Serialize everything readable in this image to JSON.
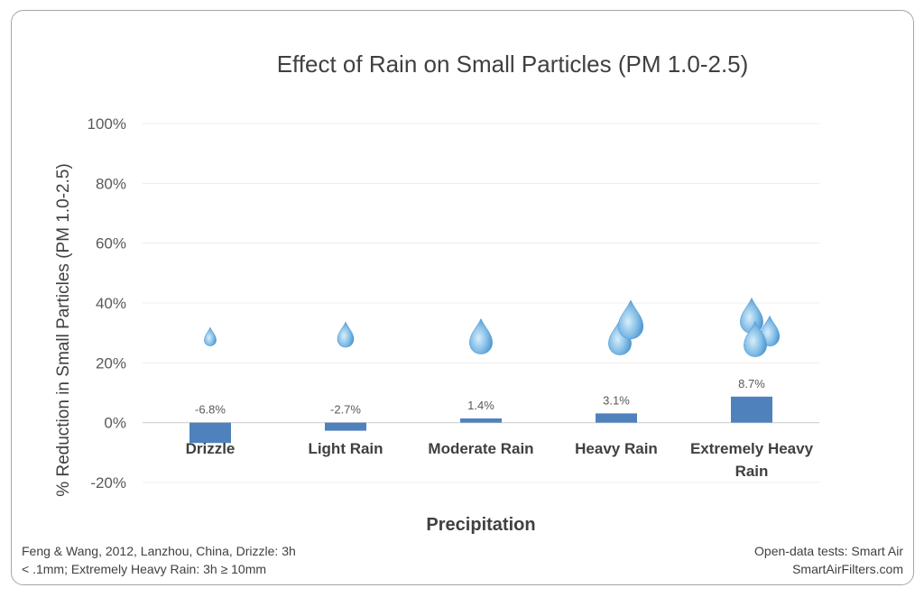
{
  "chart_data": {
    "type": "bar",
    "title": "Effect of Rain on Small Particles (PM 1.0-2.5)",
    "xlabel": "Precipitation",
    "ylabel": "% Reduction in Small Particles (PM 1.0-2.5)",
    "categories": [
      "Drizzle",
      "Light Rain",
      "Moderate Rain",
      "Heavy Rain",
      "Extremely Heavy Rain"
    ],
    "values": [
      -6.8,
      -2.7,
      1.4,
      3.1,
      8.7
    ],
    "data_labels": [
      "-6.8%",
      "-2.7%",
      "1.4%",
      "3.1%",
      "8.7%"
    ],
    "ylim": [
      -20,
      100
    ],
    "yticks": [
      -20,
      0,
      20,
      40,
      60,
      80,
      100
    ],
    "ytick_labels": [
      "-20%",
      "0%",
      "20%",
      "40%",
      "60%",
      "80%",
      "100%"
    ],
    "grid": true,
    "bar_color": "#4f81bd",
    "raindrop_counts": [
      1,
      1,
      1,
      2,
      3
    ]
  },
  "footer": {
    "source_line1": "Feng & Wang, 2012, Lanzhou, China, Drizzle: 3h",
    "source_line2": "< .1mm; Extremely Heavy Rain: 3h ≥ 10mm",
    "credit_line1": "Open-data tests: Smart Air",
    "credit_line2": "SmartAirFilters.com"
  },
  "colors": {
    "drop_light": "#bfe0f5",
    "drop_dark": "#3a86c4"
  }
}
